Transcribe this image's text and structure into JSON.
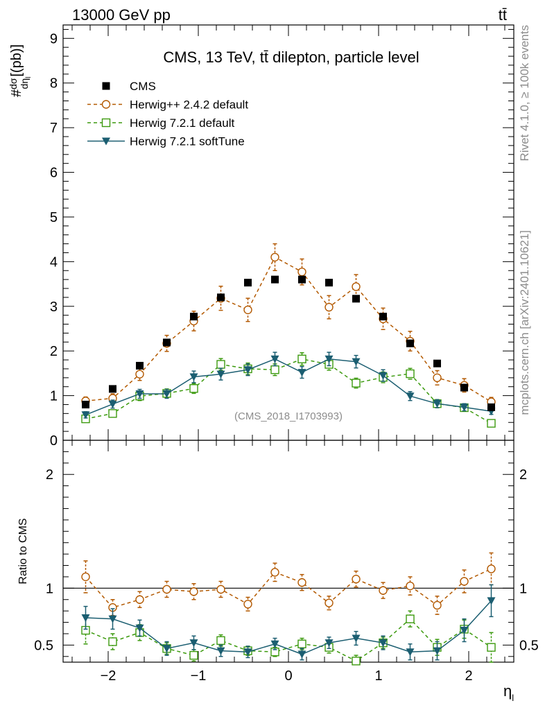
{
  "header": {
    "energy_label": "13000 GeV pp",
    "process_label": "tt̄"
  },
  "side_labels": {
    "rivet": "Rivet 4.1.0, ≥ 100k events",
    "mcplots": "mcplots.cern.ch [arXiv:2401.10621]"
  },
  "chart_data": [
    {
      "type": "scatter",
      "panel": "main",
      "title": "CMS, 13 TeV, tt̄ dilepton, particle level",
      "watermark": "(CMS_2018_I1703993)",
      "xlabel": "η_l",
      "ylabel": "#dσ/dη_l [(pb)]",
      "xlim": [
        -2.5,
        2.5
      ],
      "ylim": [
        0,
        9.3
      ],
      "x_ticks": [
        -2,
        -1,
        0,
        1,
        2
      ],
      "y_ticks": [
        0,
        1,
        2,
        3,
        4,
        5,
        6,
        7,
        8,
        9
      ],
      "x": [
        -2.25,
        -1.95,
        -1.65,
        -1.35,
        -1.05,
        -0.75,
        -0.45,
        -0.15,
        0.15,
        0.45,
        0.75,
        1.05,
        1.35,
        1.65,
        1.95,
        2.25
      ],
      "series": [
        {
          "name": "CMS",
          "color": "#000000",
          "marker": "square-filled",
          "line": "none",
          "values": [
            0.8,
            1.15,
            1.67,
            2.19,
            2.77,
            3.2,
            3.53,
            3.6,
            3.6,
            3.53,
            3.17,
            2.77,
            2.17,
            1.72,
            1.18,
            0.74
          ]
        },
        {
          "name": "Herwig++ 2.4.2 default",
          "color": "#b35900",
          "marker": "circle-open",
          "line": "dashed",
          "values": [
            0.88,
            0.94,
            1.48,
            2.17,
            2.67,
            3.18,
            2.92,
            4.1,
            3.77,
            2.98,
            3.44,
            2.72,
            2.22,
            1.4,
            1.23,
            0.86
          ],
          "errors": [
            0.09,
            0.1,
            0.14,
            0.18,
            0.22,
            0.27,
            0.26,
            0.3,
            0.29,
            0.26,
            0.27,
            0.24,
            0.22,
            0.16,
            0.15,
            0.1
          ]
        },
        {
          "name": "Herwig 7.2.1 default",
          "color": "#3c9a0e",
          "marker": "square-open",
          "line": "dashed",
          "values": [
            0.48,
            0.6,
            0.99,
            1.05,
            1.16,
            1.7,
            1.6,
            1.58,
            1.82,
            1.7,
            1.28,
            1.41,
            1.49,
            0.82,
            0.73,
            0.38
          ],
          "errors": [
            0.06,
            0.07,
            0.1,
            0.1,
            0.11,
            0.13,
            0.13,
            0.13,
            0.14,
            0.13,
            0.11,
            0.12,
            0.12,
            0.09,
            0.08,
            0.05
          ]
        },
        {
          "name": "Herwig 7.2.1 softTune",
          "color": "#1b5e71",
          "marker": "triangle-down-filled",
          "line": "solid",
          "values": [
            0.57,
            0.81,
            1.04,
            1.04,
            1.42,
            1.48,
            1.58,
            1.82,
            1.52,
            1.82,
            1.76,
            1.45,
            0.99,
            0.82,
            0.74,
            0.65
          ],
          "errors": [
            0.07,
            0.09,
            0.1,
            0.1,
            0.13,
            0.13,
            0.13,
            0.15,
            0.13,
            0.15,
            0.14,
            0.13,
            0.1,
            0.09,
            0.08,
            0.07
          ]
        }
      ]
    },
    {
      "type": "scatter",
      "panel": "ratio",
      "ylabel": "Ratio to CMS",
      "xlabel": "η_l",
      "xlim": [
        -2.5,
        2.5
      ],
      "ylim": [
        0.35,
        2.3
      ],
      "x_ticks": [
        -2,
        -1,
        0,
        1,
        2
      ],
      "y_ticks": [
        0.5,
        1,
        2
      ],
      "reference_line": 1,
      "x": [
        -2.25,
        -1.95,
        -1.65,
        -1.35,
        -1.05,
        -0.75,
        -0.45,
        -0.15,
        0.15,
        0.45,
        0.75,
        1.05,
        1.35,
        1.65,
        1.95,
        2.25
      ],
      "series": [
        {
          "name": "Herwig++ 2.4.2 default",
          "color": "#b35900",
          "values": [
            1.1,
            0.83,
            0.9,
            0.99,
            0.97,
            0.99,
            0.86,
            1.14,
            1.05,
            0.87,
            1.08,
            0.98,
            1.02,
            0.85,
            1.06,
            1.17
          ],
          "errors": [
            0.14,
            0.07,
            0.07,
            0.07,
            0.07,
            0.07,
            0.06,
            0.08,
            0.07,
            0.06,
            0.07,
            0.07,
            0.08,
            0.08,
            0.1,
            0.14
          ]
        },
        {
          "name": "Herwig 7.2.1 default",
          "color": "#3c9a0e",
          "values": [
            0.63,
            0.53,
            0.61,
            0.47,
            0.41,
            0.54,
            0.45,
            0.44,
            0.51,
            0.48,
            0.36,
            0.52,
            0.73,
            0.48,
            0.64,
            0.48
          ],
          "errors": [
            0.12,
            0.07,
            0.07,
            0.05,
            0.05,
            0.05,
            0.04,
            0.04,
            0.05,
            0.05,
            0.05,
            0.05,
            0.07,
            0.07,
            0.08,
            0.13
          ]
        },
        {
          "name": "Herwig 7.2.1 softTune",
          "color": "#1b5e71",
          "values": [
            0.74,
            0.73,
            0.65,
            0.47,
            0.52,
            0.45,
            0.44,
            0.51,
            0.42,
            0.52,
            0.56,
            0.52,
            0.44,
            0.45,
            0.63,
            0.89
          ],
          "errors": [
            0.1,
            0.09,
            0.07,
            0.06,
            0.06,
            0.05,
            0.05,
            0.05,
            0.05,
            0.05,
            0.06,
            0.06,
            0.07,
            0.08,
            0.1,
            0.14
          ]
        }
      ]
    }
  ]
}
